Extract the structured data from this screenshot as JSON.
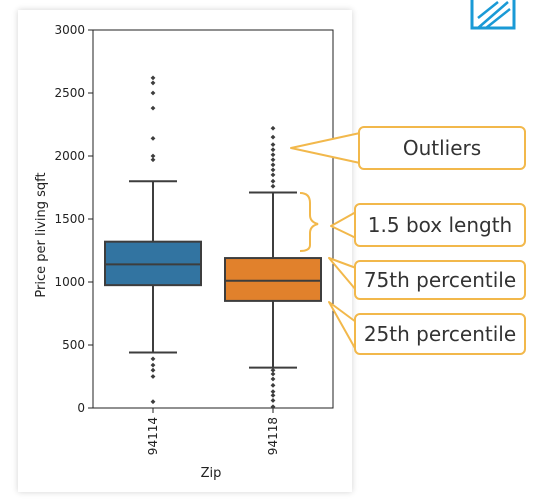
{
  "chart_data": {
    "type": "box",
    "xlabel": "Zip",
    "ylabel": "Price per living sqft",
    "categories": [
      "94114",
      "94118"
    ],
    "ylim": [
      0,
      3000
    ],
    "yticks": [
      0,
      500,
      1000,
      1500,
      2000,
      2500,
      3000
    ],
    "grid": false,
    "boxes": [
      {
        "category": "94114",
        "color": "#3274a1",
        "q1": 975,
        "median": 1140,
        "q3": 1320,
        "whisker_low": 440,
        "whisker_high": 1800,
        "outliers": [
          50,
          250,
          300,
          340,
          390,
          1970,
          2000,
          2140,
          2380,
          2500,
          2580,
          2620
        ]
      },
      {
        "category": "94118",
        "color": "#e1812c",
        "q1": 850,
        "median": 1010,
        "q3": 1190,
        "whisker_low": 320,
        "whisker_high": 1710,
        "outliers": [
          10,
          60,
          100,
          130,
          180,
          230,
          270,
          300,
          1760,
          1800,
          1850,
          1890,
          1930,
          1970,
          2010,
          2050,
          2090,
          2150,
          2220
        ]
      }
    ]
  },
  "annotations": [
    {
      "label": "Outliers"
    },
    {
      "label": "1.5 box length"
    },
    {
      "label": "75th percentile"
    },
    {
      "label": "25th percentile"
    }
  ],
  "colors": {
    "callout": "#f2b84b",
    "logo": "#1a9ad6"
  },
  "logo_icon": "geometric-logo-icon"
}
